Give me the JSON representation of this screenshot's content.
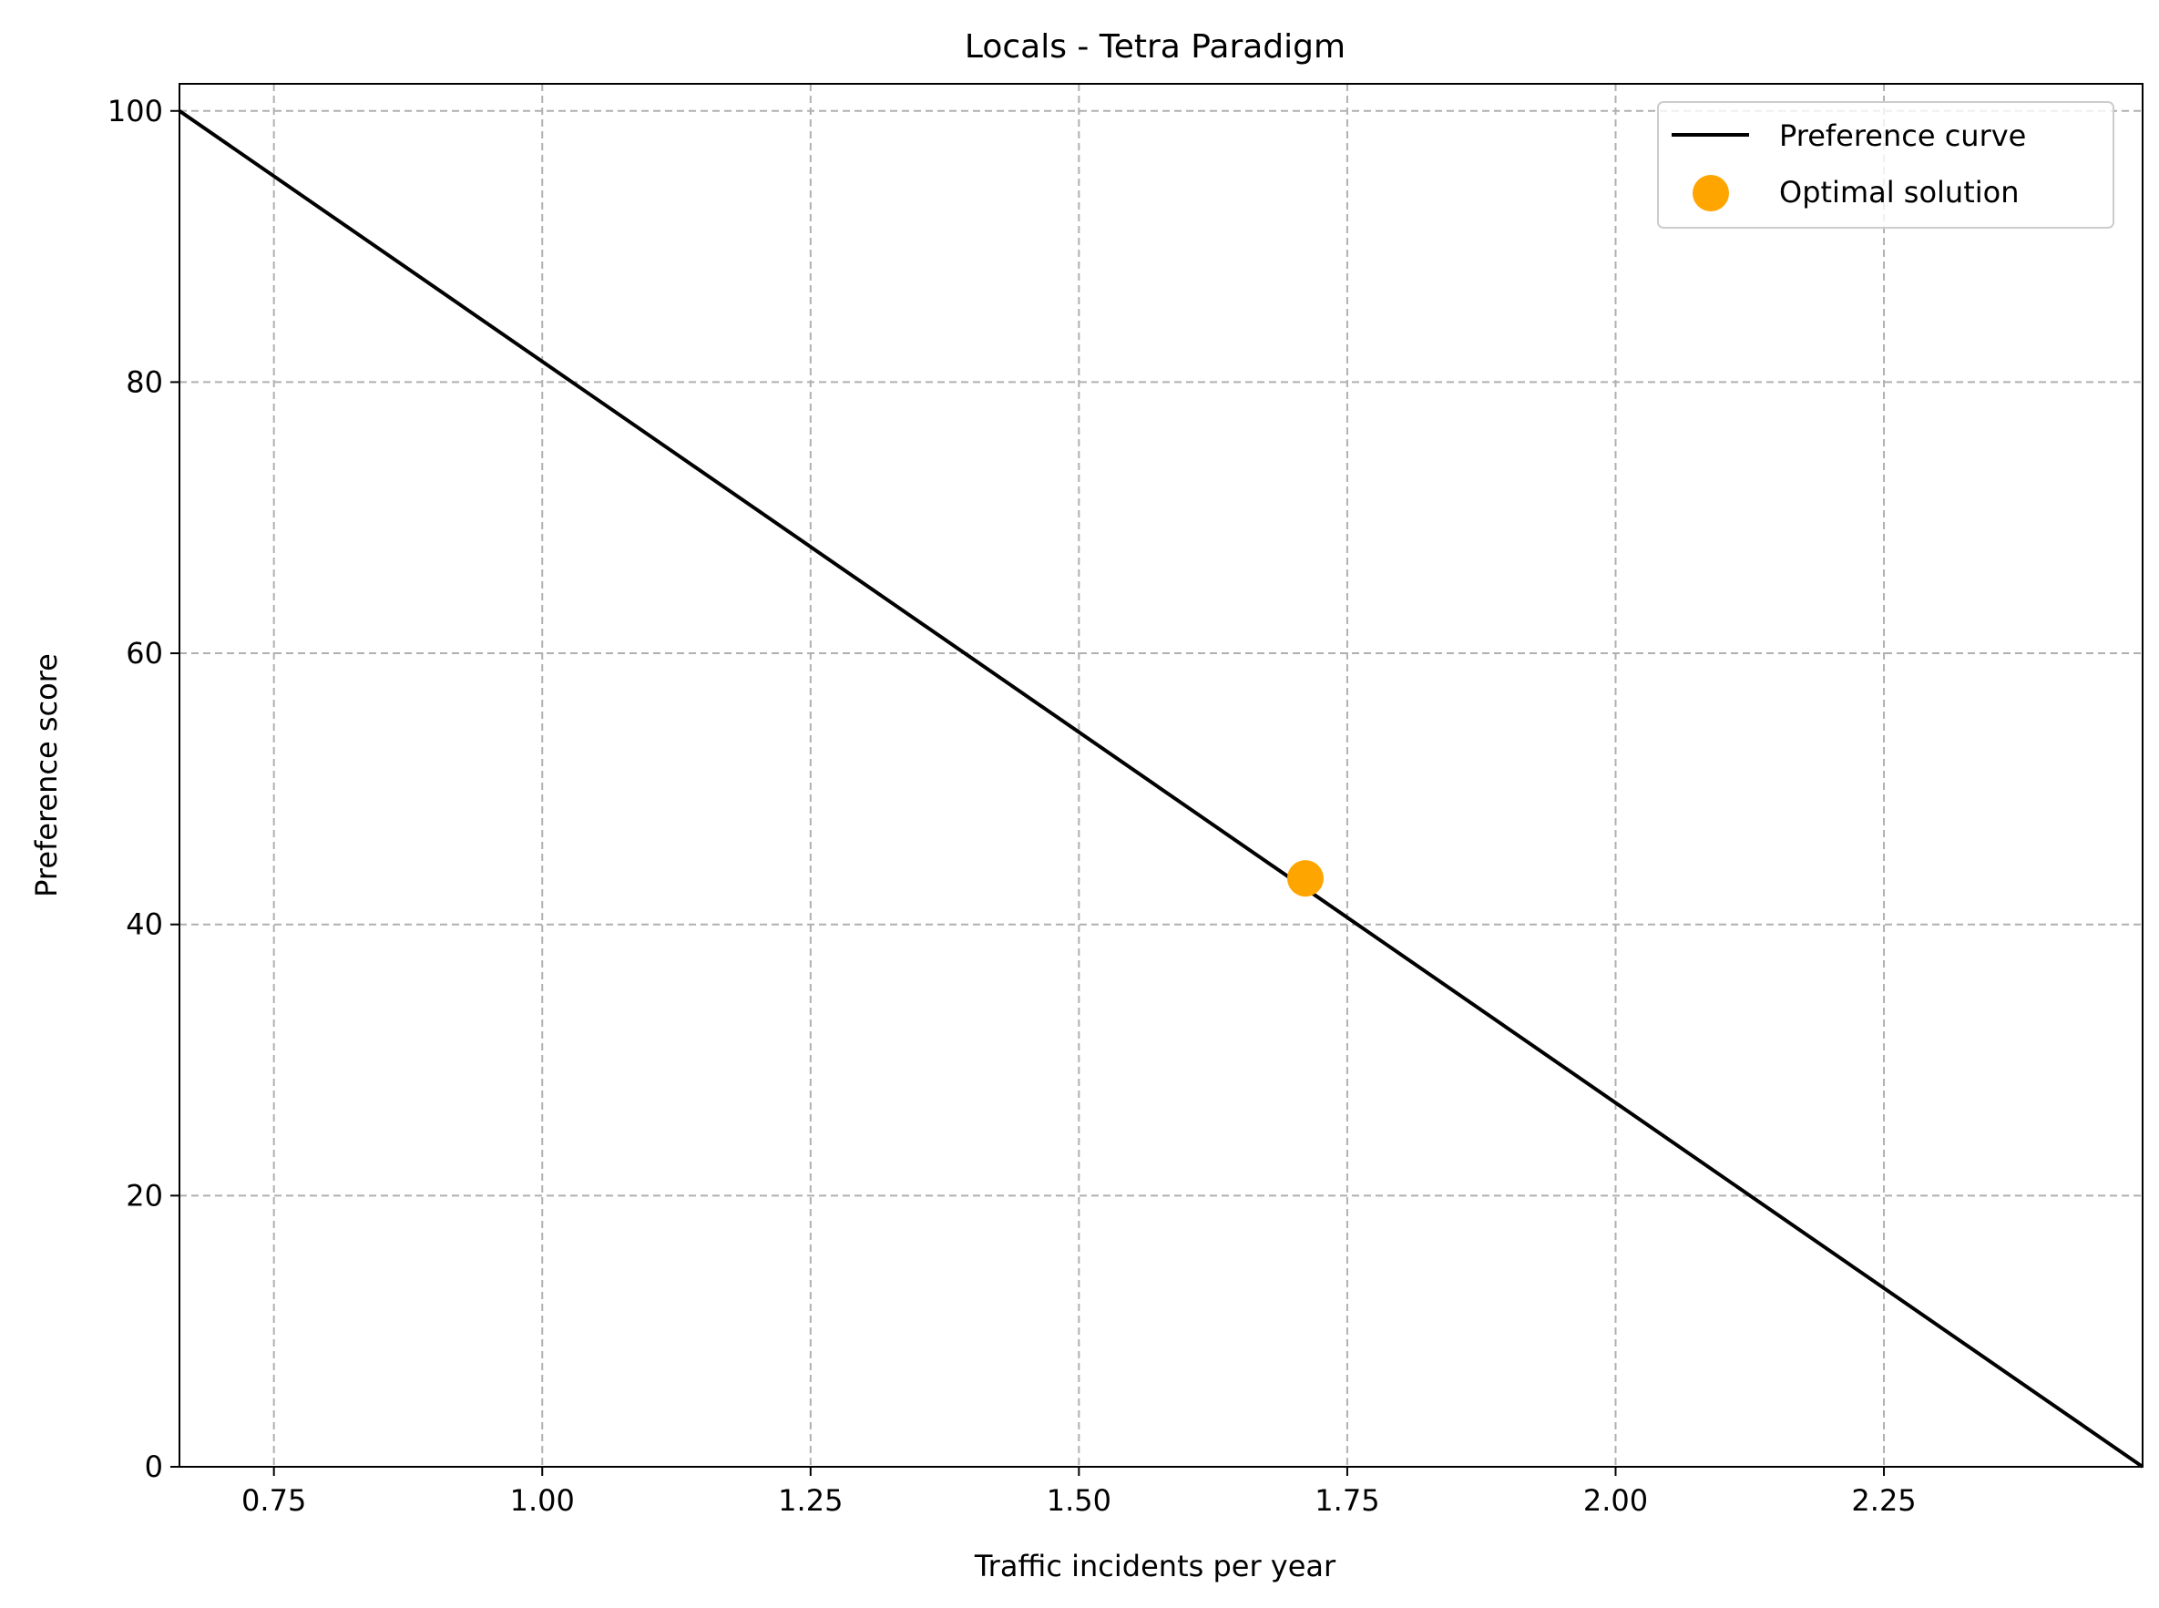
{
  "chart_data": {
    "type": "line",
    "title": "Locals - Tetra Paradigm",
    "xlabel": "Traffic incidents per year",
    "ylabel": "Preference score",
    "xlim": [
      0.662,
      2.491
    ],
    "ylim": [
      0,
      102
    ],
    "xticks": [
      0.75,
      1.0,
      1.25,
      1.5,
      1.75,
      2.0,
      2.25
    ],
    "xtick_labels": [
      "0.75",
      "1.00",
      "1.25",
      "1.50",
      "1.75",
      "2.00",
      "2.25"
    ],
    "yticks": [
      0,
      20,
      40,
      60,
      80,
      100
    ],
    "ytick_labels": [
      "0",
      "20",
      "40",
      "60",
      "80",
      "100"
    ],
    "grid": true,
    "legend_position": "top-right",
    "series": [
      {
        "name": "Preference curve",
        "type": "line",
        "color": "#000000",
        "x": [
          0.662,
          2.491
        ],
        "y": [
          100,
          0
        ]
      },
      {
        "name": "Optimal solution",
        "type": "scatter",
        "color": "#FFA500",
        "x": [
          1.711
        ],
        "y": [
          43.4
        ]
      }
    ]
  }
}
